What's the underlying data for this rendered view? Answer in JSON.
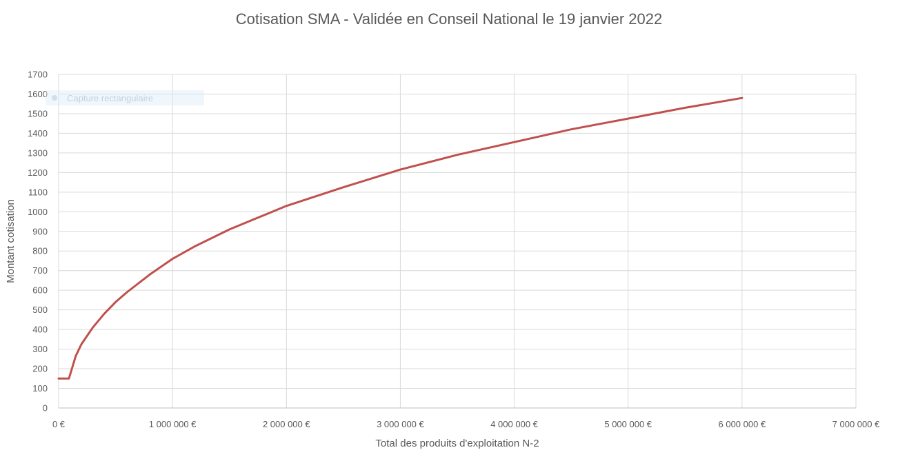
{
  "chart_data": {
    "type": "line",
    "title": "Cotisation SMA - Validée en Conseil National le 19 janvier 2022",
    "xlabel": "Total des produits d'exploitation N-2",
    "ylabel": "Montant cotisation",
    "xlim": [
      0,
      7000000
    ],
    "ylim": [
      0,
      1700
    ],
    "x_ticks": [
      0,
      1000000,
      2000000,
      3000000,
      4000000,
      5000000,
      6000000,
      7000000
    ],
    "x_tick_labels": [
      "0 €",
      "1 000 000 €",
      "2 000 000 €",
      "3 000 000 €",
      "4 000 000 €",
      "5 000 000 €",
      "6 000 000 €",
      "7 000 000 €"
    ],
    "y_ticks": [
      0,
      100,
      200,
      300,
      400,
      500,
      600,
      700,
      800,
      900,
      1000,
      1100,
      1200,
      1300,
      1400,
      1500,
      1600,
      1700
    ],
    "y_tick_labels": [
      "0",
      "100",
      "200",
      "300",
      "400",
      "500",
      "600",
      "700",
      "800",
      "900",
      "1000",
      "1100",
      "1200",
      "1300",
      "1400",
      "1500",
      "1600",
      "1700"
    ],
    "grid": true,
    "legend": "none",
    "series": [
      {
        "color": "#C0504D",
        "x": [
          0,
          90000,
          100000,
          150000,
          200000,
          300000,
          400000,
          500000,
          600000,
          800000,
          1000000,
          1200000,
          1500000,
          2000000,
          2500000,
          3000000,
          3500000,
          4000000,
          4500000,
          5000000,
          5500000,
          6000000
        ],
        "y": [
          150,
          150,
          168,
          265,
          325,
          410,
          480,
          540,
          590,
          680,
          760,
          825,
          910,
          1030,
          1125,
          1215,
          1290,
          1355,
          1420,
          1475,
          1530,
          1580
        ]
      }
    ]
  },
  "overlay": {
    "label": "Capture rectangulaire"
  }
}
